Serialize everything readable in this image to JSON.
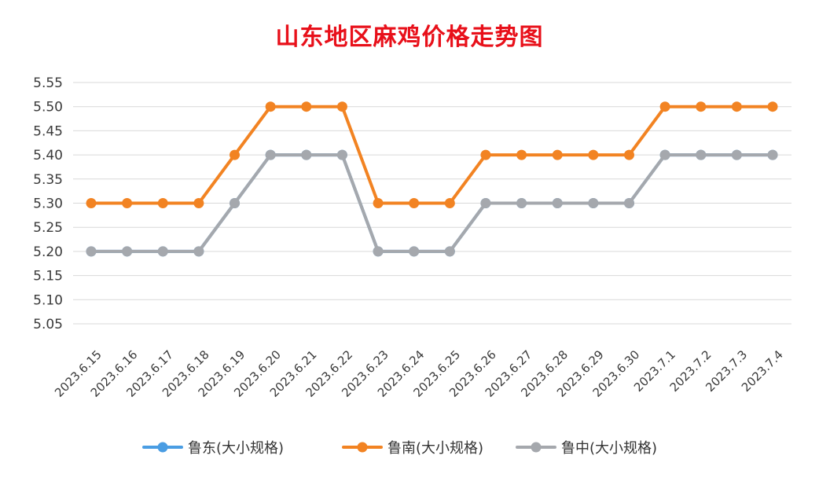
{
  "chart_data": {
    "type": "line",
    "title": "山东地区麻鸡价格走势图",
    "xlabel": "",
    "ylabel": "",
    "ylim": [
      5.05,
      5.55
    ],
    "yticks": [
      "5.55",
      "5.50",
      "5.45",
      "5.40",
      "5.35",
      "5.30",
      "5.25",
      "5.20",
      "5.15",
      "5.10",
      "5.05"
    ],
    "categories": [
      "2023.6.15",
      "2023.6.16",
      "2023.6.17",
      "2023.6.18",
      "2023.6.19",
      "2023.6.20",
      "2023.6.21",
      "2023.6.22",
      "2023.6.23",
      "2023.6.24",
      "2023.6.25",
      "2023.6.26",
      "2023.6.27",
      "2023.6.28",
      "2023.6.29",
      "2023.6.30",
      "2023.7.1",
      "2023.7.2",
      "2023.7.3",
      "2023.7.4"
    ],
    "series": [
      {
        "name": "鲁东(大小规格)",
        "color": "#4a9de3",
        "values": [
          5.2,
          5.2,
          5.2,
          5.2,
          5.3,
          5.4,
          5.4,
          5.4,
          5.2,
          5.2,
          5.2,
          5.3,
          5.3,
          5.3,
          5.3,
          5.3,
          5.4,
          5.4,
          5.4,
          5.4
        ]
      },
      {
        "name": "鲁南(大小规格)",
        "color": "#f28322",
        "values": [
          5.3,
          5.3,
          5.3,
          5.3,
          5.4,
          5.5,
          5.5,
          5.5,
          5.3,
          5.3,
          5.3,
          5.4,
          5.4,
          5.4,
          5.4,
          5.4,
          5.5,
          5.5,
          5.5,
          5.5
        ]
      },
      {
        "name": "鲁中(大小规格)",
        "color": "#a5a8ad",
        "values": [
          5.2,
          5.2,
          5.2,
          5.2,
          5.3,
          5.4,
          5.4,
          5.4,
          5.2,
          5.2,
          5.2,
          5.3,
          5.3,
          5.3,
          5.3,
          5.3,
          5.4,
          5.4,
          5.4,
          5.4
        ]
      }
    ],
    "grid": true,
    "legend": "bottom"
  },
  "colors": {
    "title": "#e8101a",
    "grid": "#d9d9d9",
    "axis_text": "#3a3a3a"
  }
}
